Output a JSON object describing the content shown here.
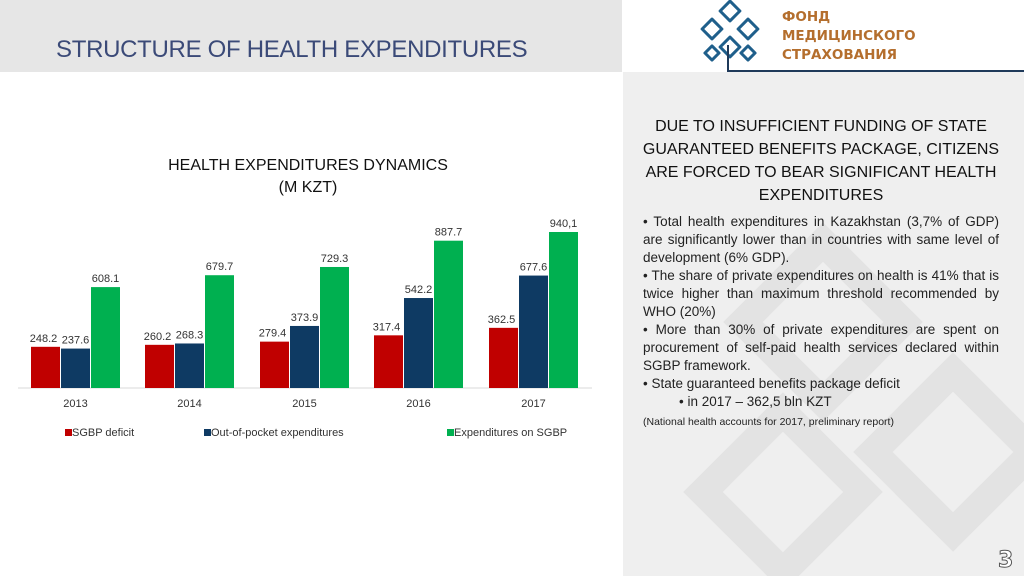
{
  "header": {
    "title": "STRUCTURE OF HEALTH EXPENDITURES"
  },
  "logo": {
    "line1": "ФОНД",
    "line2": "МЕДИЦИНСКОГО",
    "line3": "СТРАХОВАНИЯ"
  },
  "panel": {
    "heading": "DUE TO INSUFFICIENT FUNDING OF STATE GUARANTEED BENEFITS PACKAGE, CITIZENS ARE FORCED TO BEAR SIGNIFICANT HEALTH EXPENDITURES",
    "bullets": [
      "•     Total     health     expenditures     in     Kazakhstan (3,7% of GDP) are significantly lower than in countries with same level of development (6% GDP).",
      "•     The share of private expenditures on health is 41% that is twice higher than maximum threshold recommended by WHO (20%)",
      "•     More than 30% of private expenditures are spent on procurement of self-paid health services declared within SGBP framework.",
      "•     State guaranteed benefits package deficit"
    ],
    "sub_bullet": "•   in 2017 – 362,5 bln KZT",
    "footnote": "(National health accounts for 2017, preliminary report)"
  },
  "page_number": "3",
  "chart_data": {
    "type": "bar",
    "title": "HEALTH EXPENDITURES DYNAMICS (M KZT)",
    "title_line1": "HEALTH EXPENDITURES DYNAMICS",
    "title_line2": "(M KZT)",
    "categories": [
      "2013",
      "2014",
      "2015",
      "2016",
      "2017"
    ],
    "series": [
      {
        "name": "SGBP deficit",
        "color": "#c00000",
        "values": [
          248.2,
          260.2,
          279.4,
          317.4,
          362.5
        ],
        "labels": [
          "248.2",
          "260.2",
          "279.4",
          "317.4",
          "362.5"
        ]
      },
      {
        "name": "Out-of-pocket expenditures",
        "color": "#0e3a63",
        "values": [
          237.6,
          268.3,
          373.9,
          542.2,
          677.6
        ],
        "labels": [
          "237.6",
          "268.3",
          "373.9",
          "542.2",
          "677.6"
        ]
      },
      {
        "name": "Expenditures on SGBP",
        "color": "#00b050",
        "values": [
          608.1,
          679.7,
          729.3,
          887.7,
          940.1
        ],
        "labels": [
          "608.1",
          "679.7",
          "729.3",
          "887.7",
          "940,1"
        ]
      }
    ],
    "ylim": [
      0,
      1000
    ],
    "grid": false,
    "legend_position": "bottom"
  }
}
